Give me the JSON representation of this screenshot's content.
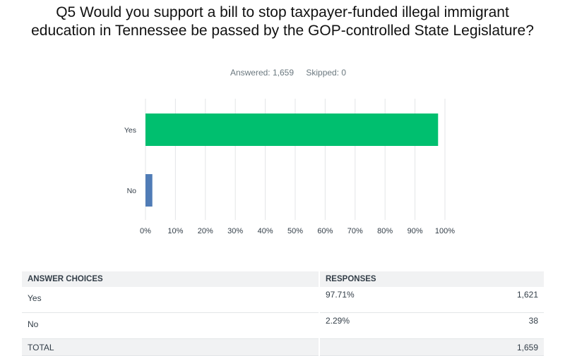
{
  "question": {
    "title": "Q5 Would you support a bill to stop taxpayer-funded illegal immigrant education in Tennessee be passed by the GOP-controlled State Legislature?",
    "answered": "Answered: 1,659",
    "skipped": "Skipped: 0"
  },
  "colors": {
    "yes_bar": "#00bf6f",
    "no_bar": "#507cb6",
    "grid": "#e3e5e7",
    "axis_text": "#333e48"
  },
  "chart_data": {
    "type": "bar",
    "orientation": "horizontal",
    "categories": [
      "Yes",
      "No"
    ],
    "values": [
      97.71,
      2.29
    ],
    "xlim": [
      0,
      100
    ],
    "x_ticks": [
      "0%",
      "10%",
      "20%",
      "30%",
      "40%",
      "50%",
      "60%",
      "70%",
      "80%",
      "90%",
      "100%"
    ],
    "grid": true
  },
  "table": {
    "headers": [
      "ANSWER CHOICES",
      "RESPONSES"
    ],
    "rows": [
      {
        "choice": "Yes",
        "percent": "97.71%",
        "count": "1,621"
      },
      {
        "choice": "No",
        "percent": "2.29%",
        "count": "38"
      }
    ],
    "total": {
      "label": "TOTAL",
      "count": "1,659"
    }
  }
}
